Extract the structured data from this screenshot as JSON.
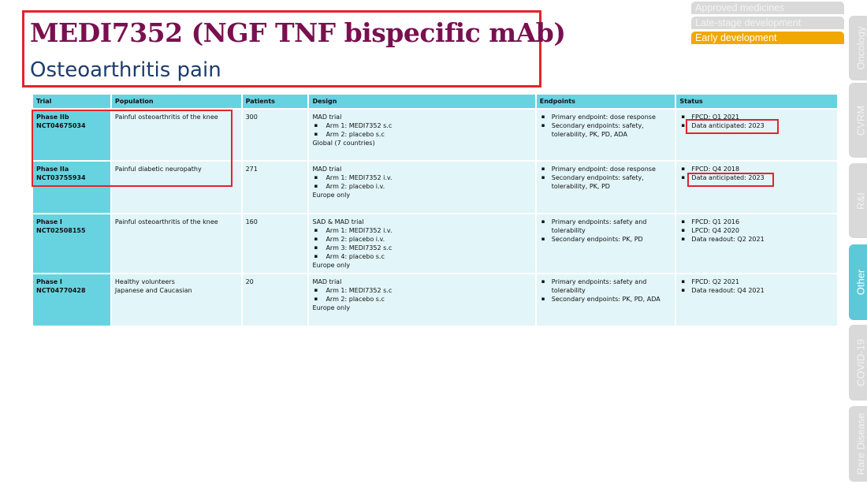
{
  "header": {
    "title": "MEDI7352 (NGF TNF bispecific mAb)",
    "subtitle": "Osteoarthritis pain"
  },
  "stages": [
    {
      "label": "Approved medicines",
      "active": false
    },
    {
      "label": "Late-stage development",
      "active": false
    },
    {
      "label": "Early development",
      "active": true
    }
  ],
  "side_tabs": [
    {
      "label": "Oncology",
      "active": false
    },
    {
      "label": "CVRM",
      "active": false
    },
    {
      "label": "R&I",
      "active": false
    },
    {
      "label": "Other",
      "active": true
    },
    {
      "label": "COVID-19",
      "active": false
    },
    {
      "label": "Rare Disease",
      "active": false
    }
  ],
  "colors": {
    "accent": "#68d3e0",
    "highlight": "#e3242b",
    "active_stage": "#f0a800",
    "title": "#7a1050"
  },
  "table": {
    "columns": [
      "Trial",
      "Population",
      "Patients",
      "Design",
      "Endpoints",
      "Status"
    ],
    "rows": [
      {
        "phase": "Phase IIb",
        "nct": "NCT04675034",
        "population": [
          "Painful osteoarthritis of the knee"
        ],
        "patients": "300",
        "design_title": "MAD trial",
        "arms": [
          "Arm 1: MEDI7352 s.c",
          "Arm 2: placebo s.c"
        ],
        "design_note": "Global (7 countries)",
        "endpoints": [
          "Primary endpoint: dose response",
          "Secondary endpoints: safety, tolerability, PK, PD, ADA"
        ],
        "status": [
          "FPCD: Q1 2021",
          "Data anticipated: 2023"
        ]
      },
      {
        "phase": "Phase IIa",
        "nct": "NCT03755934",
        "population": [
          "Painful diabetic neuropathy"
        ],
        "patients": "271",
        "design_title": "MAD trial",
        "arms": [
          "Arm 1: MEDI7352 i.v.",
          "Arm 2: placebo i.v."
        ],
        "design_note": "Europe only",
        "endpoints": [
          "Primary endpoint: dose response",
          "Secondary endpoints: safety, tolerability, PK, PD"
        ],
        "status": [
          "FPCD: Q4 2018",
          "Data anticipated: 2023"
        ]
      },
      {
        "phase": "Phase I",
        "nct": "NCT02508155",
        "population": [
          "Painful osteoarthritis of the knee"
        ],
        "patients": "160",
        "design_title": "SAD & MAD trial",
        "arms": [
          "Arm 1: MEDI7352 i.v.",
          "Arm 2: placebo i.v.",
          "Arm 3: MEDI7352 s.c",
          "Arm 4: placebo s.c"
        ],
        "design_note": "Europe only",
        "endpoints": [
          "Primary endpoints: safety and tolerability",
          "Secondary endpoints: PK, PD"
        ],
        "status": [
          "FPCD: Q1 2016",
          "LPCD: Q4 2020",
          "Data readout: Q2 2021"
        ]
      },
      {
        "phase": "Phase I",
        "nct": "NCT04770428",
        "population": [
          "Healthy volunteers",
          "Japanese and Caucasian"
        ],
        "patients": "20",
        "design_title": "MAD trial",
        "arms": [
          "Arm 1: MEDI7352 s.c",
          "Arm 2: placebo s.c"
        ],
        "design_note": "Europe only",
        "endpoints": [
          "Primary endpoints: safety and tolerability",
          "Secondary endpoints: PK, PD, ADA"
        ],
        "status": [
          "FPCD: Q2 2021",
          "Data readout: Q4 2021"
        ]
      }
    ]
  }
}
